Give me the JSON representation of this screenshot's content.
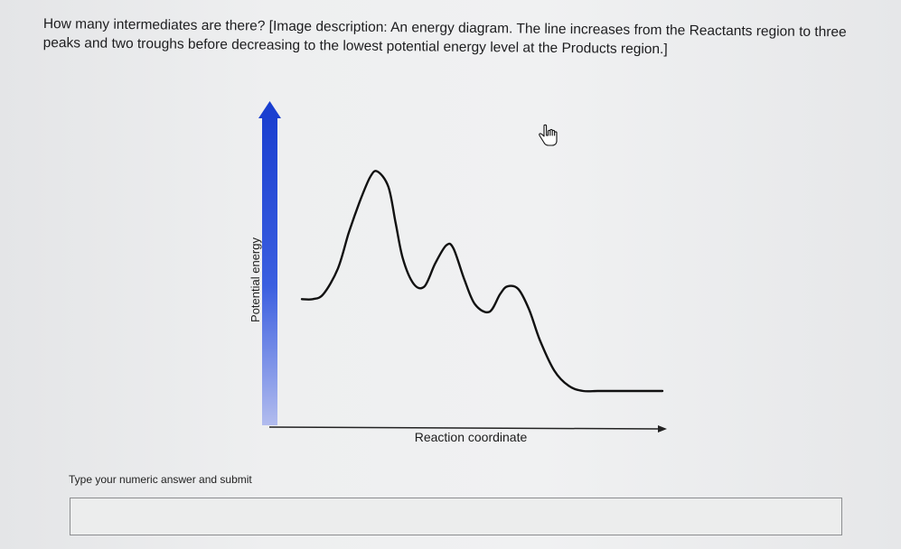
{
  "question": {
    "text": "How many intermediates are there? [Image description: An energy diagram. The line increases from the Reactants region to three peaks and two troughs before decreasing to the lowest potential energy level at the Products region.]"
  },
  "chart_data": {
    "type": "line",
    "title": "",
    "xlabel": "Reaction coordinate",
    "ylabel": "Potential energy",
    "series": [
      {
        "x": [
          0,
          3,
          6,
          10,
          13,
          16,
          19,
          21,
          24,
          26,
          28,
          31,
          34,
          37,
          40,
          42,
          45,
          48,
          52,
          55,
          57,
          60,
          63,
          66,
          70,
          74,
          78,
          82,
          86,
          90,
          95,
          100
        ],
        "values": [
          36,
          36,
          38,
          48,
          62,
          74,
          84,
          86,
          80,
          66,
          52,
          42,
          41,
          50,
          57,
          56,
          44,
          34,
          31,
          38,
          41,
          40,
          32,
          20,
          8,
          2,
          0,
          0,
          0,
          0,
          0,
          0
        ]
      }
    ],
    "xlim": [
      0,
      100
    ],
    "ylim": [
      -5,
      100
    ],
    "grid": false,
    "line_color": "#111111",
    "axis_colors": {
      "y_gradient_top": "#1a3fd0",
      "y_gradient_bottom": "#aeb8ea",
      "x_axis": "#222222"
    }
  },
  "answer": {
    "prompt": "Type your numeric answer and submit",
    "value": "",
    "placeholder": ""
  },
  "cursor": {
    "icon": "hand-pointer-icon"
  }
}
